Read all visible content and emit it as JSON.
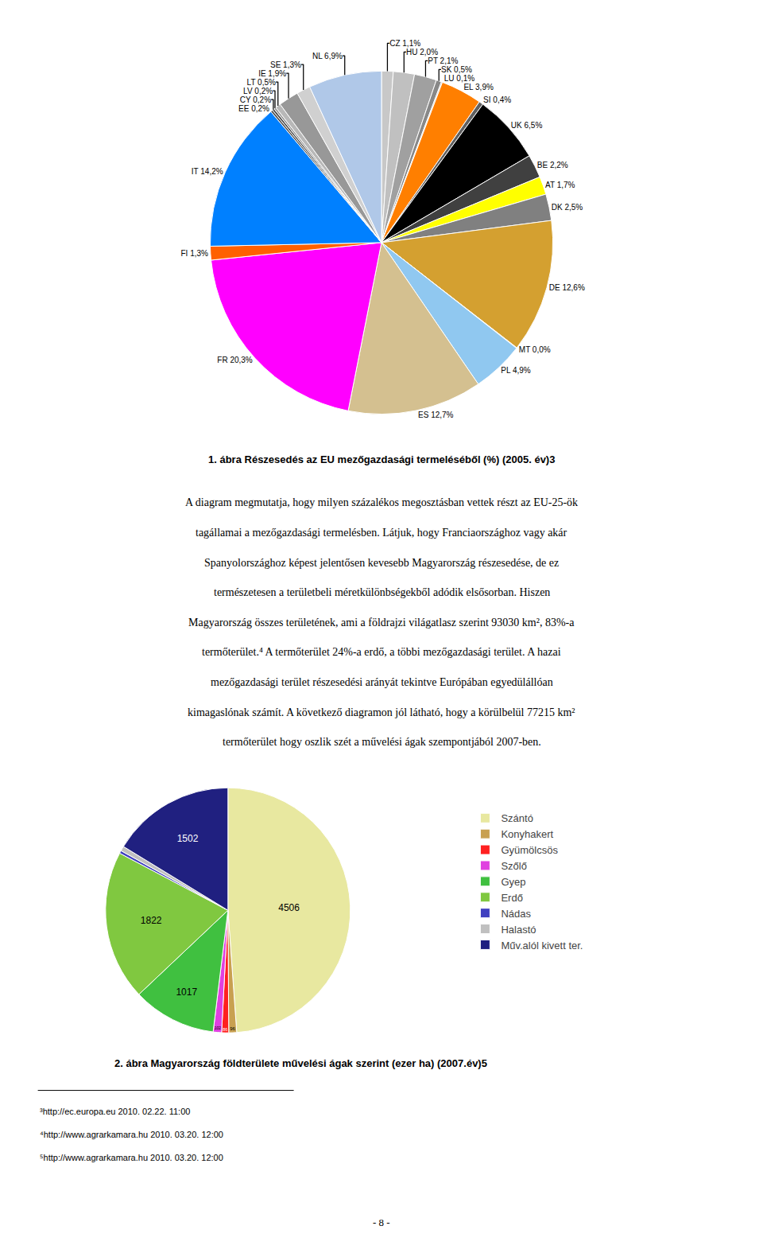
{
  "chart_data": [
    {
      "type": "pie",
      "title": "1. ábra Részesedés az EU mezőgazdasági termeléséből (%) (2005. év)3",
      "categories": [
        "CZ 1,1%",
        "HU 2,0%",
        "PT 2,1%",
        "SK 0,5%",
        "LU 0,1%",
        "EL 3,9%",
        "SI 0,4%",
        "UK 6,5%",
        "BE 2,2%",
        "AT 1,7%",
        "DK 2,5%",
        "DE 12,6%",
        "MT 0,0%",
        "PL 4,9%",
        "ES 12,7%",
        "FR 20,3%",
        "FI 1,3%",
        "IT 14,2%",
        "EE 0,2%",
        "CY 0,2%",
        "LV 0,2%",
        "LT 0,5%",
        "IE 1,9%",
        "SE 1,3%",
        "NL 6,9%"
      ],
      "values": [
        1.1,
        2.0,
        2.1,
        0.5,
        0.1,
        3.9,
        0.4,
        6.5,
        2.2,
        1.7,
        2.5,
        12.6,
        0.05,
        4.9,
        12.7,
        20.3,
        1.3,
        14.2,
        0.2,
        0.2,
        0.2,
        0.5,
        1.9,
        1.3,
        6.9
      ],
      "colors": [
        "#c8c8c8",
        "#c0c0c0",
        "#a0a0a0",
        "#888888",
        "#b0b0b0",
        "#ff7f00",
        "#606060",
        "#000000",
        "#404040",
        "#ffff00",
        "#808080",
        "#d4a030",
        "#7070c8",
        "#90c8f0",
        "#d4c090",
        "#ff00ff",
        "#ff6000",
        "#0080ff",
        "#505050",
        "#484848",
        "#989898",
        "#b8b8b8",
        "#989898",
        "#d0d0d0",
        "#b0c8e8"
      ],
      "annotations": [
        "A diagram megmutatja, hogy milyen százalékos megosztásban vettek részt az EU-25-ök",
        "tagállamai a mezőgazdasági termelésben. Látjuk, hogy Franciaországhoz vagy akár",
        "Spanyolországhoz képest jelentősen kevesebb Magyarország részesedése, de ez",
        "természetesen a területbeli méretkülönbségekből adódik elsősorban. Hiszen",
        "Magyarország összes területének, ami a földrajzi világatlasz szerint 93030 km², 83%-a",
        "termőterület.⁴ A termőterület 24%-a erdő, a többi mezőgazdasági terület. A hazai",
        "mezőgazdasági terület részesedési arányát tekintve Európában egyedülállóan",
        "kimagaslónak számít. A következő diagramon jól látható, hogy a körülbelül 77215 km²",
        "termőterület hogy oszlik szét a művelési ágak szempontjából 2007-ben."
      ]
    },
    {
      "type": "pie",
      "title": "2. ábra Magyarország földterülete művelési ágak szerint (ezer ha) (2007.év)5",
      "categories": [
        "Szántó",
        "Konyhakert",
        "Gyümölcsös",
        "Szőlő",
        "Gyep",
        "Erdő",
        "Nádas",
        "Halastó",
        "Műv.alól kivett ter."
      ],
      "values": [
        4506,
        96,
        86,
        102,
        1017,
        1822,
        34,
        58,
        1502
      ],
      "value_labels": [
        "4506",
        "96",
        "86",
        "102",
        "1017",
        "1822",
        null,
        null,
        "1502"
      ],
      "colors": [
        "#e8e8a0",
        "#c8a050",
        "#ff2020",
        "#e040e0",
        "#40c040",
        "#80c840",
        "#4040c0",
        "#c0c0c0",
        "#202080"
      ],
      "data_labels": true,
      "legend": "right",
      "annotations": [
        "³http://ec.europa.eu 2010. 02.22. 11:00",
        "⁴http://www.agrarkamara.hu 2010. 03.20. 12:00",
        "⁵http://www.agrarkamara.hu 2010. 03.20. 12:00",
        "- 8 -"
      ]
    }
  ]
}
